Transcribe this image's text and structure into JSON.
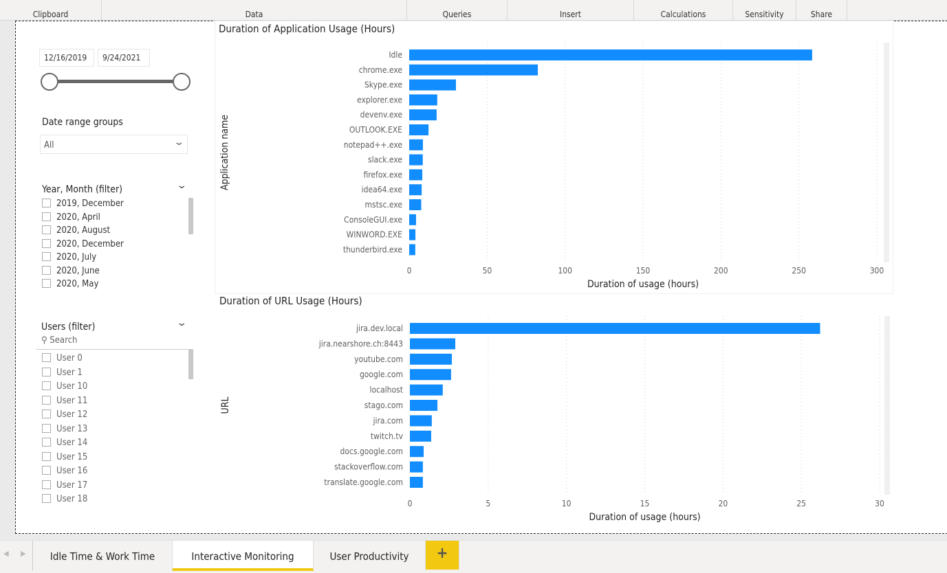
{
  "ribbon": {
    "groups": [
      "Clipboard",
      "Data",
      "Queries",
      "Insert",
      "Calculations",
      "Sensitivity",
      "Share"
    ]
  },
  "date_slicer": {
    "start": "12/16/2019",
    "end": "9/24/2021",
    "range_fraction": [
      0,
      1
    ]
  },
  "date_range_groups": {
    "label": "Date range groups",
    "selected": "All"
  },
  "year_month_filter": {
    "title": "Year, Month (filter)",
    "items": [
      "2019, December",
      "2020, April",
      "2020, August",
      "2020, December",
      "2020, July",
      "2020, June",
      "2020, May"
    ]
  },
  "users_filter": {
    "title": "Users (filter)",
    "search_placeholder": "Search",
    "items": [
      "User 0",
      "User 1",
      "User 10",
      "User 11",
      "User 12",
      "User 13",
      "User 14",
      "User 15",
      "User 16",
      "User 17",
      "User 18"
    ]
  },
  "chart_data": [
    {
      "type": "bar",
      "orientation": "horizontal",
      "title": "Duration of Application Usage (Hours)",
      "xlabel": "Duration of usage (hours)",
      "ylabel": "Application name",
      "xlim": [
        0,
        300
      ],
      "xticks": [
        0,
        50,
        100,
        150,
        200,
        250,
        300
      ],
      "grid": true,
      "color": "#118dff",
      "categories": [
        "Idle",
        "chrome.exe",
        "Skype.exe",
        "explorer.exe",
        "devenv.exe",
        "OUTLOOK.EXE",
        "notepad++.exe",
        "slack.exe",
        "firefox.exe",
        "idea64.exe",
        "mstsc.exe",
        "ConsoleGUI.exe",
        "WINWORD.EXE",
        "thunderbird.exe"
      ],
      "values": [
        258.5,
        82.5,
        30,
        18,
        17.6,
        12.4,
        8.8,
        8.7,
        8.4,
        8,
        7.7,
        4.4,
        4,
        3.9
      ]
    },
    {
      "type": "bar",
      "orientation": "horizontal",
      "title": "Duration of URL Usage (Hours)",
      "xlabel": "Duration of usage (hours)",
      "ylabel": "URL",
      "xlim": [
        0,
        30
      ],
      "xticks": [
        0,
        5,
        10,
        15,
        20,
        25,
        30
      ],
      "grid": true,
      "color": "#118dff",
      "categories": [
        "jira.dev.local",
        "jira.nearshore.ch:8443",
        "youtube.com",
        "google.com",
        "localhost",
        "stago.com",
        "jira.com",
        "twitch.tv",
        "docs.google.com",
        "stackoverflow.com",
        "translate.google.com"
      ],
      "values": [
        26.2,
        2.9,
        2.68,
        2.63,
        2.1,
        1.76,
        1.4,
        1.36,
        0.88,
        0.83,
        0.83
      ]
    }
  ],
  "tabs": {
    "items": [
      "Idle Time & Work Time",
      "Interactive Monitoring",
      "User Productivity"
    ],
    "active": "Interactive Monitoring",
    "add": "+",
    "accent": "#f2c811"
  }
}
